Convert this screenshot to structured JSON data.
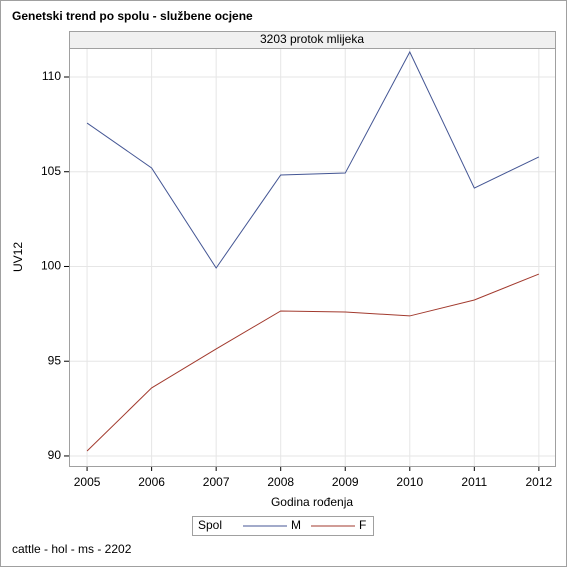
{
  "chart_data": {
    "type": "line",
    "title": "Genetski trend po spolu - službene ocjene",
    "panel_label": "3203 protok mlijeka",
    "x_label": "Godina rođenja",
    "y_label": "UV12",
    "legend_title": "Spol",
    "footnote": "cattle - hol - ms - 2202",
    "x": [
      2005,
      2006,
      2007,
      2008,
      2009,
      2010,
      2011,
      2012
    ],
    "series": [
      {
        "name": "M",
        "color": "#445694",
        "values": [
          107.57,
          105.2,
          99.92,
          104.83,
          104.93,
          111.32,
          104.14,
          105.78
        ]
      },
      {
        "name": "F",
        "color": "#a23a2e",
        "values": [
          90.26,
          93.59,
          95.65,
          97.65,
          97.6,
          97.39,
          98.23,
          99.6
        ]
      }
    ],
    "xlim": [
      2004.72,
      2012.25
    ],
    "xticks": [
      2005,
      2006,
      2007,
      2008,
      2009,
      2010,
      2011,
      2012
    ],
    "ylim": [
      89.47,
      111.53
    ],
    "yticks": [
      90,
      95,
      100,
      105,
      110
    ],
    "grid": true,
    "legend_position": "bottom"
  }
}
